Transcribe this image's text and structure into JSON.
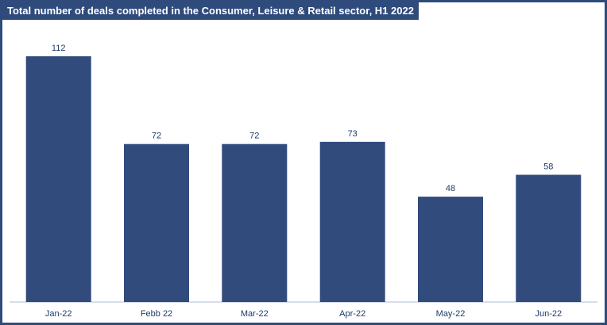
{
  "chart_data": {
    "type": "bar",
    "title": "Total number of deals completed in the Consumer, Leisure & Retail sector, H1 2022",
    "categories": [
      "Jan-22",
      "Febb 22",
      "Mar-22",
      "Apr-22",
      "May-22",
      "Jun-22"
    ],
    "values": [
      112,
      72,
      72,
      73,
      48,
      58
    ],
    "xlabel": "",
    "ylabel": "",
    "ylim": [
      0,
      125
    ],
    "grid": false,
    "legend": "none",
    "bar_color": "#324b7d",
    "accent_color": "#2f4b7c"
  }
}
